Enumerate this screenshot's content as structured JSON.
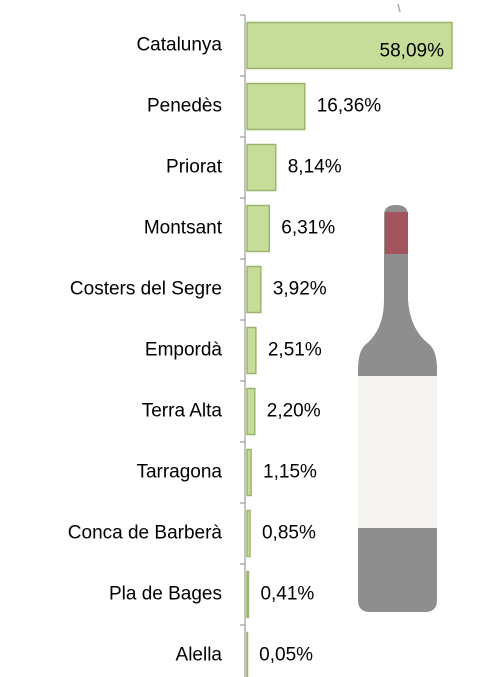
{
  "chart_data": {
    "type": "bar",
    "orientation": "horizontal",
    "categories": [
      "Catalunya",
      "Penedès",
      "Priorat",
      "Montsant",
      "Costers del Segre",
      "Empordà",
      "Terra Alta",
      "Tarragona",
      "Conca de Barberà",
      "Pla de Bages",
      "Alella"
    ],
    "values": [
      58.09,
      16.36,
      8.14,
      6.31,
      3.92,
      2.51,
      2.2,
      1.15,
      0.85,
      0.41,
      0.05
    ],
    "value_labels": [
      "58,09%",
      "16,36%",
      "8,14%",
      "6,31%",
      "3,92%",
      "2,51%",
      "2,20%",
      "1,15%",
      "0,85%",
      "0,41%",
      "0,05%"
    ],
    "color": "#c6dd99"
  }
}
